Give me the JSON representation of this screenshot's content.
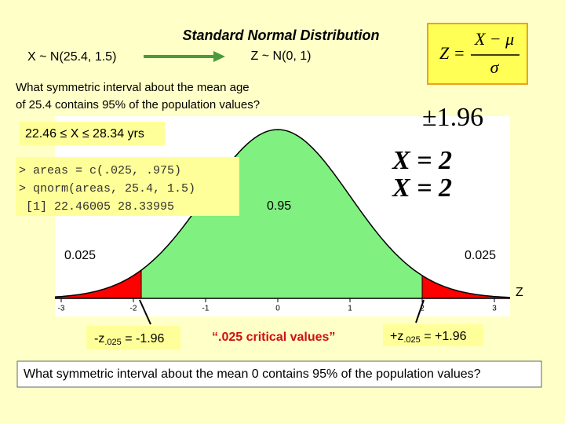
{
  "left_distribution": "X ~ N(25.4, 1.5)",
  "title": "Standard Normal Distribution",
  "subtitle": "Z ~ N(0, 1)",
  "formula": {
    "lhs": "Z =",
    "numerator": "X − μ",
    "denominator": "σ"
  },
  "question_1": [
    "What symmetric interval about the mean age",
    "of 25.4 contains 95% of the population values?"
  ],
  "answer": "22.46 ≤ X ≤ 28.34 yrs",
  "code": [
    "> areas = c(.025, .975)",
    "> qnorm(areas, 25.4, 1.5)",
    " [1] 22.46005 28.33995"
  ],
  "side_text": [
    "±1.96",
    "X = 2",
    "X = 2"
  ],
  "plot": {
    "center_area": "0.95",
    "left_tail_area": "0.025",
    "right_tail_area": "0.025",
    "axis_label": "Z",
    "xticks": [
      -3,
      -2,
      -1,
      0,
      1,
      2,
      3
    ]
  },
  "callouts": {
    "left": {
      "symbol": "-z",
      "subscript": ".025",
      "value": " = -1.96"
    },
    "middle": "“.025 critical values”",
    "right": {
      "symbol": "+z",
      "subscript": ".025",
      "value": " = +1.96"
    }
  },
  "question_2": "What symmetric interval about the mean 0 contains 95% of the population values?"
}
